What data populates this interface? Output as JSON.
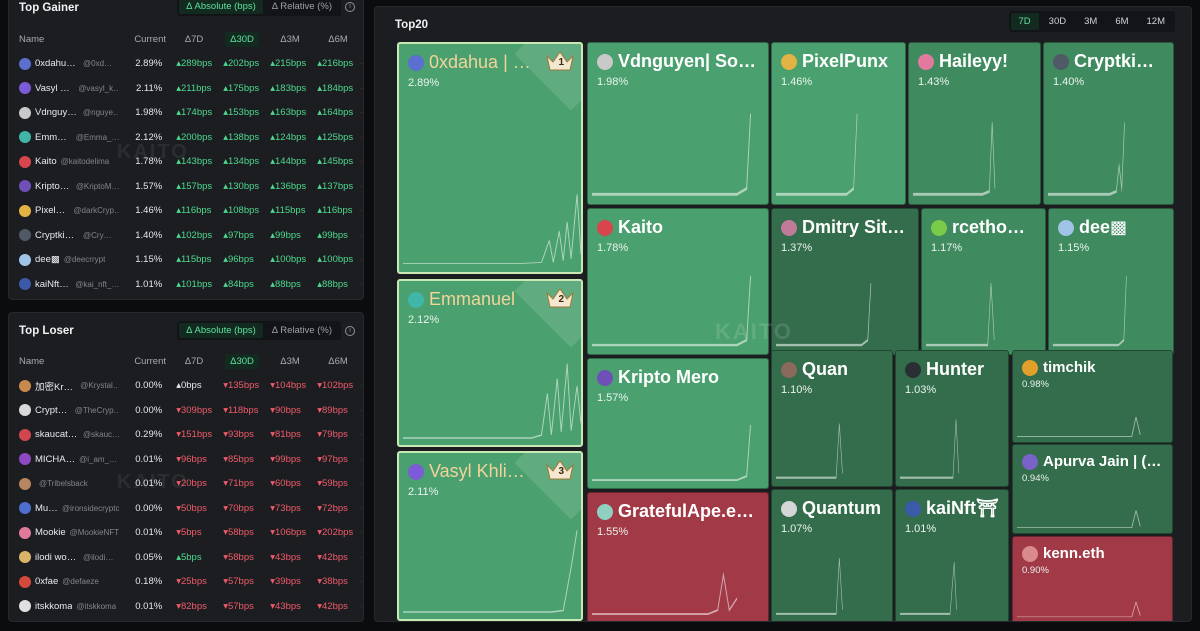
{
  "colors": {
    "green": "#4ed98f",
    "red": "#f05b6a",
    "tile_green": "#4aa06e",
    "tile_red": "#a13946"
  },
  "gainer": {
    "title": "Top Gainer",
    "toggle": {
      "absolute": "Δ Absolute (bps)",
      "relative": "Δ Relative (%)"
    },
    "info": "i",
    "columns": [
      "Name",
      "Current",
      "Δ7D",
      "Δ30D",
      "Δ3M",
      "Δ6M"
    ],
    "watermark": "KAITO",
    "rows": [
      {
        "name": "0xdahua…",
        "handle": "@0xd…",
        "current": "2.89%",
        "d7": "289bps",
        "d30": "202bps",
        "d3m": "215bps",
        "d6m": "216bps",
        "av": "#5b6fd1",
        "dir": [
          "pos",
          "pos",
          "pos",
          "pos"
        ]
      },
      {
        "name": "Vasyl K…",
        "handle": "@vasyl_k…",
        "current": "2.11%",
        "d7": "211bps",
        "d30": "175bps",
        "d3m": "183bps",
        "d6m": "184bps",
        "av": "#7b5cd6",
        "dir": [
          "pos",
          "pos",
          "pos",
          "pos"
        ]
      },
      {
        "name": "Vdnguye…",
        "handle": "@nguye…",
        "current": "1.98%",
        "d7": "174bps",
        "d30": "153bps",
        "d3m": "163bps",
        "d6m": "164bps",
        "av": "#c9c9c9",
        "dir": [
          "pos",
          "pos",
          "pos",
          "pos"
        ]
      },
      {
        "name": "Emma…",
        "handle": "@Emma_…",
        "current": "2.12%",
        "d7": "200bps",
        "d30": "138bps",
        "d3m": "124bps",
        "d6m": "125bps",
        "av": "#3fb6a8",
        "dir": [
          "pos",
          "pos",
          "pos",
          "pos"
        ]
      },
      {
        "name": "Kaito",
        "handle": "@kaitodelima",
        "current": "1.78%",
        "d7": "143bps",
        "d30": "134bps",
        "d3m": "144bps",
        "d6m": "145bps",
        "av": "#d8454a",
        "dir": [
          "pos",
          "pos",
          "pos",
          "pos"
        ]
      },
      {
        "name": "Kripto …",
        "handle": "@KriptoM…",
        "current": "1.57%",
        "d7": "157bps",
        "d30": "130bps",
        "d3m": "136bps",
        "d6m": "137bps",
        "av": "#6f4fb8",
        "dir": [
          "pos",
          "pos",
          "pos",
          "pos"
        ]
      },
      {
        "name": "PixelP…",
        "handle": "@darkCryp…",
        "current": "1.46%",
        "d7": "116bps",
        "d30": "108bps",
        "d3m": "115bps",
        "d6m": "116bps",
        "av": "#e2b342",
        "dir": [
          "pos",
          "pos",
          "pos",
          "pos"
        ]
      },
      {
        "name": "Cryptking…",
        "handle": "@Cry…",
        "current": "1.40%",
        "d7": "102bps",
        "d30": "97bps",
        "d3m": "99bps",
        "d6m": "99bps",
        "av": "#505a66",
        "dir": [
          "pos",
          "pos",
          "pos",
          "pos"
        ]
      },
      {
        "name": "dee▩",
        "handle": "@deecrrypt",
        "current": "1.15%",
        "d7": "115bps",
        "d30": "96bps",
        "d3m": "100bps",
        "d6m": "100bps",
        "av": "#9fc4e8",
        "dir": [
          "pos",
          "pos",
          "pos",
          "pos"
        ]
      },
      {
        "name": "kaiNft⛩",
        "handle": "@kai_nft_…",
        "current": "1.01%",
        "d7": "101bps",
        "d30": "84bps",
        "d3m": "88bps",
        "d6m": "88bps",
        "av": "#3b5aa8",
        "dir": [
          "pos",
          "pos",
          "pos",
          "pos"
        ]
      }
    ]
  },
  "loser": {
    "title": "Top Loser",
    "toggle": {
      "absolute": "Δ Absolute (bps)",
      "relative": "Δ Relative (%)"
    },
    "info": "i",
    "columns": [
      "Name",
      "Current",
      "Δ7D",
      "Δ30D",
      "Δ3M",
      "Δ6M"
    ],
    "watermark": "KAITO",
    "rows": [
      {
        "name": "加密Kry…",
        "handle": "@Krystal…",
        "current": "0.00%",
        "d7": "0bps",
        "d30": "135bps",
        "d3m": "104bps",
        "d6m": "102bps",
        "av": "#c78a4a",
        "dir": [
          "neu",
          "neg",
          "neg",
          "neg"
        ]
      },
      {
        "name": "Crypto…",
        "handle": "@TheCryp…",
        "current": "0.00%",
        "d7": "309bps",
        "d30": "118bps",
        "d3m": "90bps",
        "d6m": "89bps",
        "av": "#d9d9d9",
        "dir": [
          "neg",
          "neg",
          "neg",
          "neg"
        ]
      },
      {
        "name": "skaucat …",
        "handle": "@skauc…",
        "current": "0.29%",
        "d7": "151bps",
        "d30": "93bps",
        "d3m": "81bps",
        "d6m": "79bps",
        "av": "#d0474d",
        "dir": [
          "neg",
          "neg",
          "neg",
          "neg"
        ]
      },
      {
        "name": "MICHA…",
        "handle": "@i_am_…",
        "current": "0.01%",
        "d7": "96bps",
        "d30": "85bps",
        "d3m": "99bps",
        "d6m": "97bps",
        "av": "#8e48c2",
        "dir": [
          "neg",
          "neg",
          "neg",
          "neg"
        ]
      },
      {
        "name": "",
        "handle": "@Tribelsback",
        "current": "0.01%",
        "d7": "20bps",
        "d30": "71bps",
        "d3m": "60bps",
        "d6m": "59bps",
        "av": "#b88563",
        "dir": [
          "neg",
          "neg",
          "neg",
          "neg"
        ]
      },
      {
        "name": "Mush",
        "handle": "@ironsidecrypto",
        "current": "0.00%",
        "d7": "50bps",
        "d30": "70bps",
        "d3m": "73bps",
        "d6m": "72bps",
        "av": "#4f6fd0",
        "dir": [
          "neg",
          "neg",
          "neg",
          "neg"
        ]
      },
      {
        "name": "Mookie",
        "handle": "@MookieNFT",
        "current": "0.01%",
        "d7": "5bps",
        "d30": "58bps",
        "d3m": "106bps",
        "d6m": "202bps",
        "av": "#e07a9a",
        "dir": [
          "neg",
          "neg",
          "neg",
          "neg"
        ]
      },
      {
        "name": "ilodi wow …",
        "handle": "@ilodi…",
        "current": "0.05%",
        "d7": "5bps",
        "d30": "58bps",
        "d3m": "43bps",
        "d6m": "42bps",
        "av": "#d9b36a",
        "dir": [
          "pos",
          "neg",
          "neg",
          "neg"
        ]
      },
      {
        "name": "0xfae",
        "handle": "@defaeze",
        "current": "0.18%",
        "d7": "25bps",
        "d30": "57bps",
        "d3m": "39bps",
        "d6m": "38bps",
        "av": "#d44a3a",
        "dir": [
          "neg",
          "neg",
          "neg",
          "neg"
        ]
      },
      {
        "name": "itskkoma",
        "handle": "@itskkoma",
        "current": "0.01%",
        "d7": "82bps",
        "d30": "57bps",
        "d3m": "43bps",
        "d6m": "42bps",
        "av": "#e0e0e0",
        "dir": [
          "neg",
          "neg",
          "neg",
          "neg"
        ]
      }
    ]
  },
  "top20": {
    "title": "Top20",
    "periods": [
      "7D",
      "30D",
      "3M",
      "6M",
      "12M"
    ],
    "active_period": "7D",
    "watermark": "KAITO",
    "tiles": [
      {
        "name": "0xdahua | …",
        "pct": "2.89%",
        "rank": "1",
        "av": "#5b6fd1",
        "color": "t1"
      },
      {
        "name": "Emmanuel",
        "pct": "2.12%",
        "rank": "2",
        "av": "#3fb6a8",
        "color": "t1"
      },
      {
        "name": "Vasyl Khli…",
        "pct": "2.11%",
        "rank": "3",
        "av": "#7b5cd6",
        "color": "t1"
      },
      {
        "name": "Vdnguyen| So…",
        "pct": "1.98%",
        "av": "#c9c9c9",
        "color": "g1"
      },
      {
        "name": "PixelPunx",
        "pct": "1.46%",
        "av": "#e2b342",
        "color": "g1"
      },
      {
        "name": "Haileyy!",
        "pct": "1.43%",
        "av": "#e27aa0",
        "color": "g2"
      },
      {
        "name": "Cryptki…",
        "pct": "1.40%",
        "av": "#505a66",
        "color": "g2"
      },
      {
        "name": "Kaito",
        "pct": "1.78%",
        "av": "#d8454a",
        "color": "g1"
      },
      {
        "name": "Dmitry Sit…",
        "pct": "1.37%",
        "av": "#c07a9a",
        "color": "g3"
      },
      {
        "name": "rcetho…",
        "pct": "1.17%",
        "av": "#7acb4a",
        "color": "g2"
      },
      {
        "name": "dee▩",
        "pct": "1.15%",
        "av": "#9fc4e8",
        "color": "g2"
      },
      {
        "name": "Kripto Mero",
        "pct": "1.57%",
        "av": "#6f4fb8",
        "color": "g1"
      },
      {
        "name": "Quan",
        "pct": "1.10%",
        "av": "#8a6a5a",
        "color": "g3"
      },
      {
        "name": "Hunter",
        "pct": "1.03%",
        "av": "#2a2f36",
        "color": "g3"
      },
      {
        "name": "timchik",
        "pct": "0.98%",
        "av": "#e2a02a",
        "color": "g3"
      },
      {
        "name": "Apurva Jain | (Ø,…",
        "pct": "0.94%",
        "av": "#7a63c8",
        "color": "g3"
      },
      {
        "name": "GratefulApe.e…",
        "pct": "1.55%",
        "av": "#8fd0c0",
        "color": "red"
      },
      {
        "name": "Quantum",
        "pct": "1.07%",
        "av": "#d6d6d6",
        "color": "g3"
      },
      {
        "name": "kaiNft⛩",
        "pct": "1.01%",
        "av": "#3b5aa8",
        "color": "g3"
      },
      {
        "name": "kenn.eth",
        "pct": "0.90%",
        "av": "#d98a8a",
        "color": "red"
      }
    ]
  }
}
